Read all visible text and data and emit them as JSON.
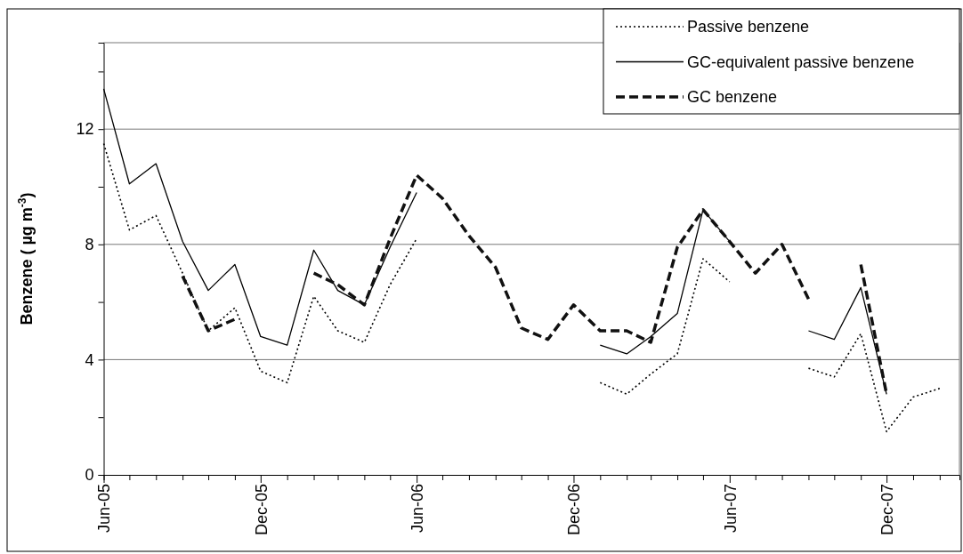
{
  "chart_data": {
    "type": "line",
    "ylabel": "Benzene ( µg m$^{-3}$)",
    "x": [
      "2005-06",
      "2005-07",
      "2005-08",
      "2005-09",
      "2005-10",
      "2005-11",
      "2005-12",
      "2006-01",
      "2006-02",
      "2006-03",
      "2006-04",
      "2006-05",
      "2006-06",
      "2006-07",
      "2006-08",
      "2006-09",
      "2006-10",
      "2006-11",
      "2006-12",
      "2007-01",
      "2007-02",
      "2007-03",
      "2007-04",
      "2007-05",
      "2007-06",
      "2007-07",
      "2007-08",
      "2007-09",
      "2007-10",
      "2007-11",
      "2007-12",
      "2008-01",
      "2008-02"
    ],
    "series": [
      {
        "name": "Passive benzene",
        "color": "#000000",
        "line_style": "dotted",
        "values": [
          11.5,
          8.5,
          9.0,
          7.0,
          5.0,
          5.8,
          3.6,
          3.2,
          6.2,
          5.0,
          4.6,
          6.6,
          8.2,
          null,
          null,
          null,
          null,
          null,
          null,
          3.2,
          2.8,
          3.5,
          4.2,
          7.5,
          6.7,
          null,
          null,
          3.7,
          3.4,
          4.9,
          1.5,
          2.7,
          3.0
        ]
      },
      {
        "name": "GC-equivalent passive benzene",
        "color": "#000000",
        "line_style": "solid",
        "values": [
          13.4,
          10.1,
          10.8,
          8.1,
          6.4,
          7.3,
          4.8,
          4.5,
          7.8,
          6.4,
          5.9,
          7.9,
          9.8,
          null,
          null,
          null,
          null,
          null,
          null,
          4.5,
          4.2,
          4.8,
          5.6,
          9.2,
          8.1,
          null,
          null,
          5.0,
          4.7,
          6.5,
          2.8,
          null,
          null
        ]
      },
      {
        "name": "GC benzene",
        "color": "#111111",
        "line_style": "dashed",
        "values": [
          null,
          null,
          null,
          6.9,
          5.0,
          5.4,
          null,
          null,
          7.0,
          6.6,
          5.9,
          8.2,
          10.4,
          9.6,
          8.3,
          7.2,
          5.1,
          4.7,
          5.9,
          5.0,
          5.0,
          4.6,
          7.9,
          9.2,
          8.1,
          7.0,
          8.0,
          6.1,
          null,
          7.3,
          2.8,
          null,
          null
        ]
      }
    ],
    "xlim": [
      "2005-06",
      "2008-02-24"
    ],
    "xticks": [
      {
        "value": "2005-06",
        "label": "Jun-05"
      },
      {
        "value": "2005-07",
        "label": null
      },
      {
        "value": "2005-08",
        "label": null
      },
      {
        "value": "2005-09",
        "label": null
      },
      {
        "value": "2005-10",
        "label": null
      },
      {
        "value": "2005-11",
        "label": null
      },
      {
        "value": "2005-12",
        "label": "Dec-05"
      },
      {
        "value": "2006-01",
        "label": null
      },
      {
        "value": "2006-02",
        "label": null
      },
      {
        "value": "2006-03",
        "label": null
      },
      {
        "value": "2006-04",
        "label": null
      },
      {
        "value": "2006-05",
        "label": null
      },
      {
        "value": "2006-06",
        "label": "Jun-06"
      },
      {
        "value": "2006-07",
        "label": null
      },
      {
        "value": "2006-08",
        "label": null
      },
      {
        "value": "2006-09",
        "label": null
      },
      {
        "value": "2006-10",
        "label": null
      },
      {
        "value": "2006-11",
        "label": null
      },
      {
        "value": "2006-12",
        "label": "Dec-06"
      },
      {
        "value": "2007-01",
        "label": null
      },
      {
        "value": "2007-02",
        "label": null
      },
      {
        "value": "2007-03",
        "label": null
      },
      {
        "value": "2007-04",
        "label": null
      },
      {
        "value": "2007-05",
        "label": null
      },
      {
        "value": "2007-06",
        "label": "Jun-07"
      },
      {
        "value": "2007-07",
        "label": null
      },
      {
        "value": "2007-08",
        "label": null
      },
      {
        "value": "2007-09",
        "label": null
      },
      {
        "value": "2007-10",
        "label": null
      },
      {
        "value": "2007-11",
        "label": null
      },
      {
        "value": "2007-12",
        "label": "Dec-07"
      },
      {
        "value": "2008-01",
        "label": null
      },
      {
        "value": "2008-02",
        "label": null
      }
    ],
    "ylim": [
      0,
      15
    ],
    "yticks": [
      0,
      {
        "value": 2,
        "label": null
      },
      4,
      {
        "value": 6,
        "label": null
      },
      8,
      {
        "value": 10,
        "label": null
      },
      12,
      {
        "value": 14,
        "label": null
      }
    ],
    "grid": "y",
    "legend": "top right"
  }
}
